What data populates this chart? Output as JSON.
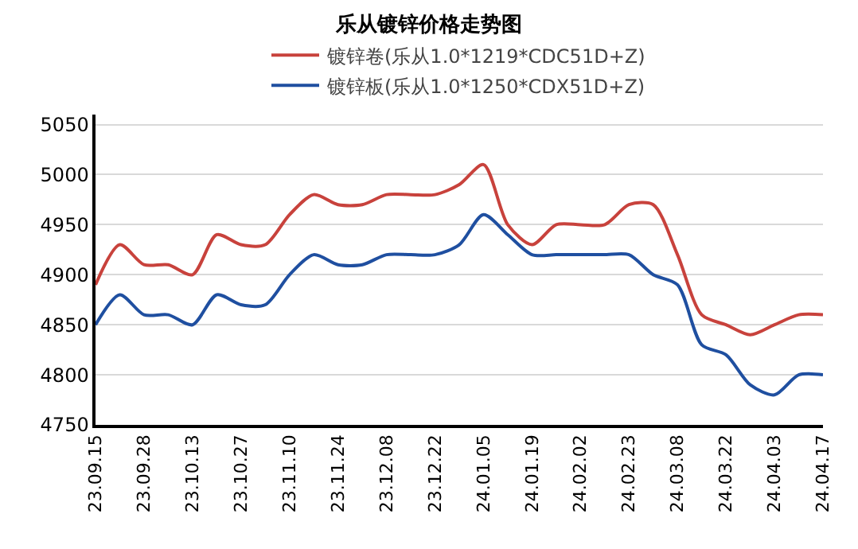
{
  "chart_data": {
    "type": "line",
    "title": "乐从镀锌价格走势图",
    "categories": [
      "23.09.15",
      null,
      "23.09.28",
      null,
      "23.10.13",
      null,
      "23.10.27",
      null,
      "23.11.10",
      null,
      "23.11.24",
      null,
      "23.12.08",
      null,
      "23.12.22",
      null,
      "24.01.05",
      null,
      "24.01.19",
      null,
      "24.02.02",
      null,
      "24.02.23",
      null,
      "24.03.08",
      null,
      "24.03.22",
      null,
      "24.04.03",
      null,
      "24.04.17"
    ],
    "series": [
      {
        "name": "镀锌卷(乐从1.0*1219*CDC51D+Z)",
        "color": "#c8423c",
        "values": [
          4890,
          4930,
          4910,
          4910,
          4900,
          4940,
          4930,
          4930,
          4960,
          4980,
          4970,
          4970,
          4980,
          4980,
          4980,
          4990,
          5010,
          4950,
          4930,
          4950,
          4950,
          4950,
          4970,
          4970,
          4920,
          4860,
          4850,
          4840,
          4850,
          4860,
          4860
        ]
      },
      {
        "name": "镀锌板(乐从1.0*1250*CDX51D+Z)",
        "color": "#1f4fa0",
        "values": [
          4850,
          4880,
          4860,
          4860,
          4850,
          4880,
          4870,
          4870,
          4900,
          4920,
          4910,
          4910,
          4920,
          4920,
          4920,
          4930,
          4960,
          4940,
          4920,
          4920,
          4920,
          4920,
          4920,
          4900,
          4890,
          4830,
          4820,
          4790,
          4780,
          4800,
          4800
        ]
      }
    ],
    "ylim": [
      4750,
      5060
    ],
    "yticks": [
      4750,
      4800,
      4850,
      4900,
      4950,
      5000,
      5050
    ],
    "grid": "y",
    "legend": "top",
    "marker": "none",
    "line_style": "solid"
  }
}
